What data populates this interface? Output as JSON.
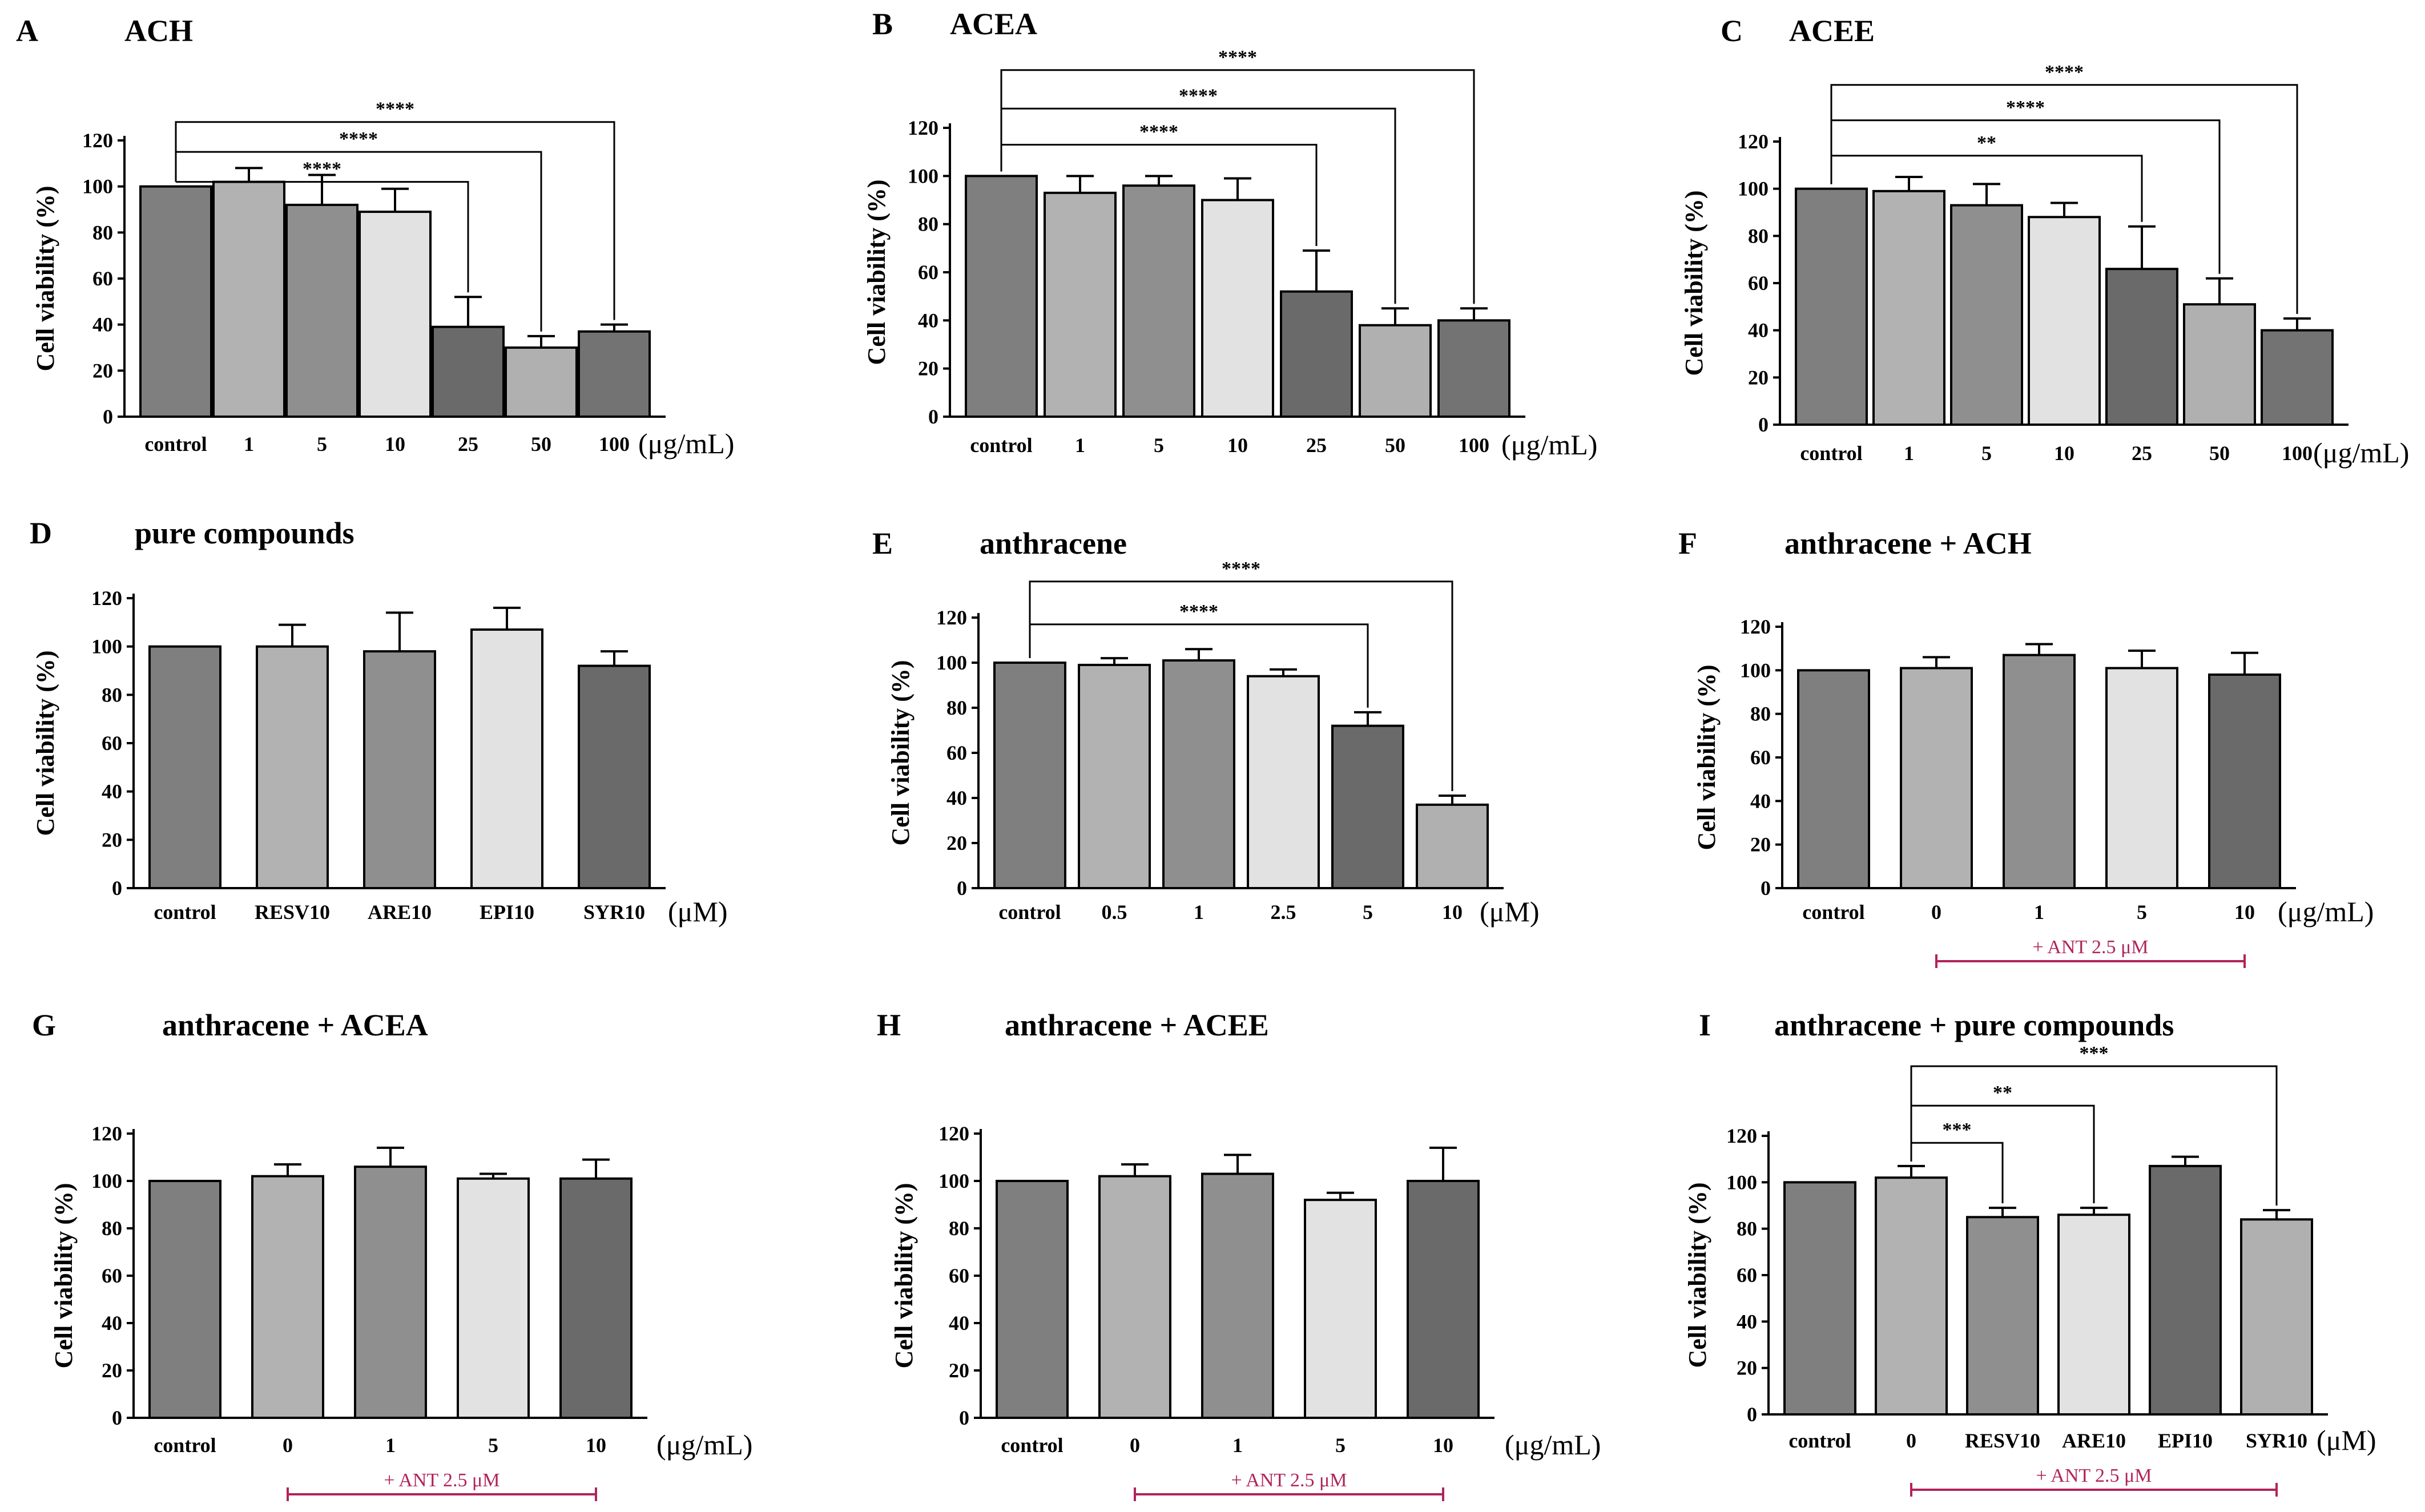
{
  "chart_data": [
    {
      "letter": "A",
      "title": "ACH",
      "type": "bar",
      "ylabel": "Cell viability (%)",
      "ylim": [
        0,
        120
      ],
      "yticks": [
        0,
        20,
        40,
        60,
        80,
        100,
        120
      ],
      "unit": "(μg/mL)",
      "categories": [
        "control",
        "1",
        "5",
        "10",
        "25",
        "50",
        "100"
      ],
      "values": [
        100,
        102,
        92,
        89,
        39,
        30,
        37
      ],
      "errors": [
        0,
        6,
        13,
        10,
        13,
        5,
        3
      ],
      "colors": [
        "#7f7f7f",
        "#b2b2b2",
        "#8f8f8f",
        "#e2e2e2",
        "#6a6a6a",
        "#b0b0b0",
        "#737373"
      ],
      "significance": [
        {
          "from": 0,
          "to": 4,
          "label": "****",
          "level": 102
        },
        {
          "from": 0,
          "to": 5,
          "label": "****",
          "level": 115
        },
        {
          "from": 0,
          "to": 6,
          "label": "****",
          "level": 128
        }
      ]
    },
    {
      "letter": "B",
      "title": "ACEA",
      "type": "bar",
      "ylabel": "Cell viability (%)",
      "ylim": [
        0,
        120
      ],
      "yticks": [
        0,
        20,
        40,
        60,
        80,
        100,
        120
      ],
      "unit": "(μg/mL)",
      "categories": [
        "control",
        "1",
        "5",
        "10",
        "25",
        "50",
        "100"
      ],
      "values": [
        100,
        93,
        96,
        90,
        52,
        38,
        40
      ],
      "errors": [
        0,
        7,
        4,
        9,
        17,
        7,
        5
      ],
      "colors": [
        "#7f7f7f",
        "#b2b2b2",
        "#8f8f8f",
        "#e2e2e2",
        "#6a6a6a",
        "#b0b0b0",
        "#737373"
      ],
      "significance": [
        {
          "from": 0,
          "to": 4,
          "label": "****",
          "level": 113
        },
        {
          "from": 0,
          "to": 5,
          "label": "****",
          "level": 128
        },
        {
          "from": 0,
          "to": 6,
          "label": "****",
          "level": 144
        }
      ]
    },
    {
      "letter": "C",
      "title": "ACEE",
      "type": "bar",
      "ylabel": "Cell viability (%)",
      "ylim": [
        0,
        120
      ],
      "yticks": [
        0,
        20,
        40,
        60,
        80,
        100,
        120
      ],
      "unit": "(μg/mL)",
      "categories": [
        "control",
        "1",
        "5",
        "10",
        "25",
        "50",
        "100"
      ],
      "values": [
        100,
        99,
        93,
        88,
        66,
        51,
        40
      ],
      "errors": [
        0,
        6,
        9,
        6,
        18,
        11,
        5
      ],
      "colors": [
        "#7f7f7f",
        "#b2b2b2",
        "#8f8f8f",
        "#e2e2e2",
        "#6a6a6a",
        "#b0b0b0",
        "#737373"
      ],
      "significance": [
        {
          "from": 0,
          "to": 4,
          "label": "**",
          "level": 114
        },
        {
          "from": 0,
          "to": 5,
          "label": "****",
          "level": 129
        },
        {
          "from": 0,
          "to": 6,
          "label": "****",
          "level": 144
        }
      ]
    },
    {
      "letter": "D",
      "title": "pure compounds",
      "type": "bar",
      "ylabel": "Cell viability (%)",
      "ylim": [
        0,
        120
      ],
      "yticks": [
        0,
        20,
        40,
        60,
        80,
        100,
        120
      ],
      "unit": "(μM)",
      "categories": [
        "control",
        "RESV10",
        "ARE10",
        "EPI10",
        "SYR10"
      ],
      "values": [
        100,
        100,
        98,
        107,
        92
      ],
      "errors": [
        0,
        9,
        16,
        9,
        6
      ],
      "colors": [
        "#7f7f7f",
        "#b2b2b2",
        "#8f8f8f",
        "#e2e2e2",
        "#6a6a6a"
      ],
      "significance": []
    },
    {
      "letter": "E",
      "title": "anthracene",
      "type": "bar",
      "ylabel": "Cell viability (%)",
      "ylim": [
        0,
        120
      ],
      "yticks": [
        0,
        20,
        40,
        60,
        80,
        100,
        120
      ],
      "unit": "(μM)",
      "categories": [
        "control",
        "0.5",
        "1",
        "2.5",
        "5",
        "10"
      ],
      "values": [
        100,
        99,
        101,
        94,
        72,
        37
      ],
      "errors": [
        0,
        3,
        5,
        3,
        6,
        4
      ],
      "colors": [
        "#7f7f7f",
        "#b2b2b2",
        "#8f8f8f",
        "#e2e2e2",
        "#6a6a6a",
        "#b0b0b0"
      ],
      "significance": [
        {
          "from": 0,
          "to": 4,
          "label": "****",
          "level": 117
        },
        {
          "from": 0,
          "to": 5,
          "label": "****",
          "level": 136
        }
      ]
    },
    {
      "letter": "F",
      "title": "anthracene + ACH",
      "type": "bar",
      "ylabel": "Cell viability (%)",
      "ylim": [
        0,
        120
      ],
      "yticks": [
        0,
        20,
        40,
        60,
        80,
        100,
        120
      ],
      "unit": "(μg/mL)",
      "categories": [
        "control",
        "0",
        "1",
        "5",
        "10"
      ],
      "values": [
        100,
        101,
        107,
        101,
        98
      ],
      "errors": [
        0,
        5,
        5,
        8,
        10
      ],
      "colors": [
        "#7f7f7f",
        "#b2b2b2",
        "#8f8f8f",
        "#e2e2e2",
        "#6a6a6a"
      ],
      "treatment": {
        "label": "+ ANT 2.5 μM",
        "from": 1,
        "to": 4
      },
      "significance": []
    },
    {
      "letter": "G",
      "title": "anthracene + ACEA",
      "type": "bar",
      "ylabel": "Cell viability (%)",
      "ylim": [
        0,
        120
      ],
      "yticks": [
        0,
        20,
        40,
        60,
        80,
        100,
        120
      ],
      "unit": "(μg/mL)",
      "categories": [
        "control",
        "0",
        "1",
        "5",
        "10"
      ],
      "values": [
        100,
        102,
        106,
        101,
        101
      ],
      "errors": [
        0,
        5,
        8,
        2,
        8
      ],
      "colors": [
        "#7f7f7f",
        "#b2b2b2",
        "#8f8f8f",
        "#e2e2e2",
        "#6a6a6a"
      ],
      "treatment": {
        "label": "+ ANT 2.5 μM",
        "from": 1,
        "to": 4
      },
      "significance": []
    },
    {
      "letter": "H",
      "title": "anthracene + ACEE",
      "type": "bar",
      "ylabel": "Cell viability (%)",
      "ylim": [
        0,
        120
      ],
      "yticks": [
        0,
        20,
        40,
        60,
        80,
        100,
        120
      ],
      "unit": "(μg/mL)",
      "categories": [
        "control",
        "0",
        "1",
        "5",
        "10"
      ],
      "values": [
        100,
        102,
        103,
        92,
        100
      ],
      "errors": [
        0,
        5,
        8,
        3,
        14
      ],
      "colors": [
        "#7f7f7f",
        "#b2b2b2",
        "#8f8f8f",
        "#e2e2e2",
        "#6a6a6a"
      ],
      "treatment": {
        "label": "+ ANT 2.5 μM",
        "from": 1,
        "to": 4
      },
      "significance": []
    },
    {
      "letter": "I",
      "title": "anthracene + pure compounds",
      "type": "bar",
      "ylabel": "Cell viability (%)",
      "ylim": [
        0,
        120
      ],
      "yticks": [
        0,
        20,
        40,
        60,
        80,
        100,
        120
      ],
      "unit": "(μM)",
      "categories": [
        "control",
        "0",
        "RESV10",
        "ARE10",
        "EPI10",
        "SYR10"
      ],
      "values": [
        100,
        102,
        85,
        86,
        107,
        84
      ],
      "errors": [
        0,
        5,
        4,
        3,
        4,
        4
      ],
      "colors": [
        "#7f7f7f",
        "#b2b2b2",
        "#8f8f8f",
        "#e2e2e2",
        "#6a6a6a",
        "#b0b0b0"
      ],
      "treatment": {
        "label": "+ ANT 2.5 μM",
        "from": 1,
        "to": 5
      },
      "significance": [
        {
          "from": 1,
          "to": 2,
          "label": "***",
          "level": 117
        },
        {
          "from": 1,
          "to": 3,
          "label": "**",
          "level": 133
        },
        {
          "from": 1,
          "to": 5,
          "label": "***",
          "level": 150
        }
      ]
    }
  ]
}
